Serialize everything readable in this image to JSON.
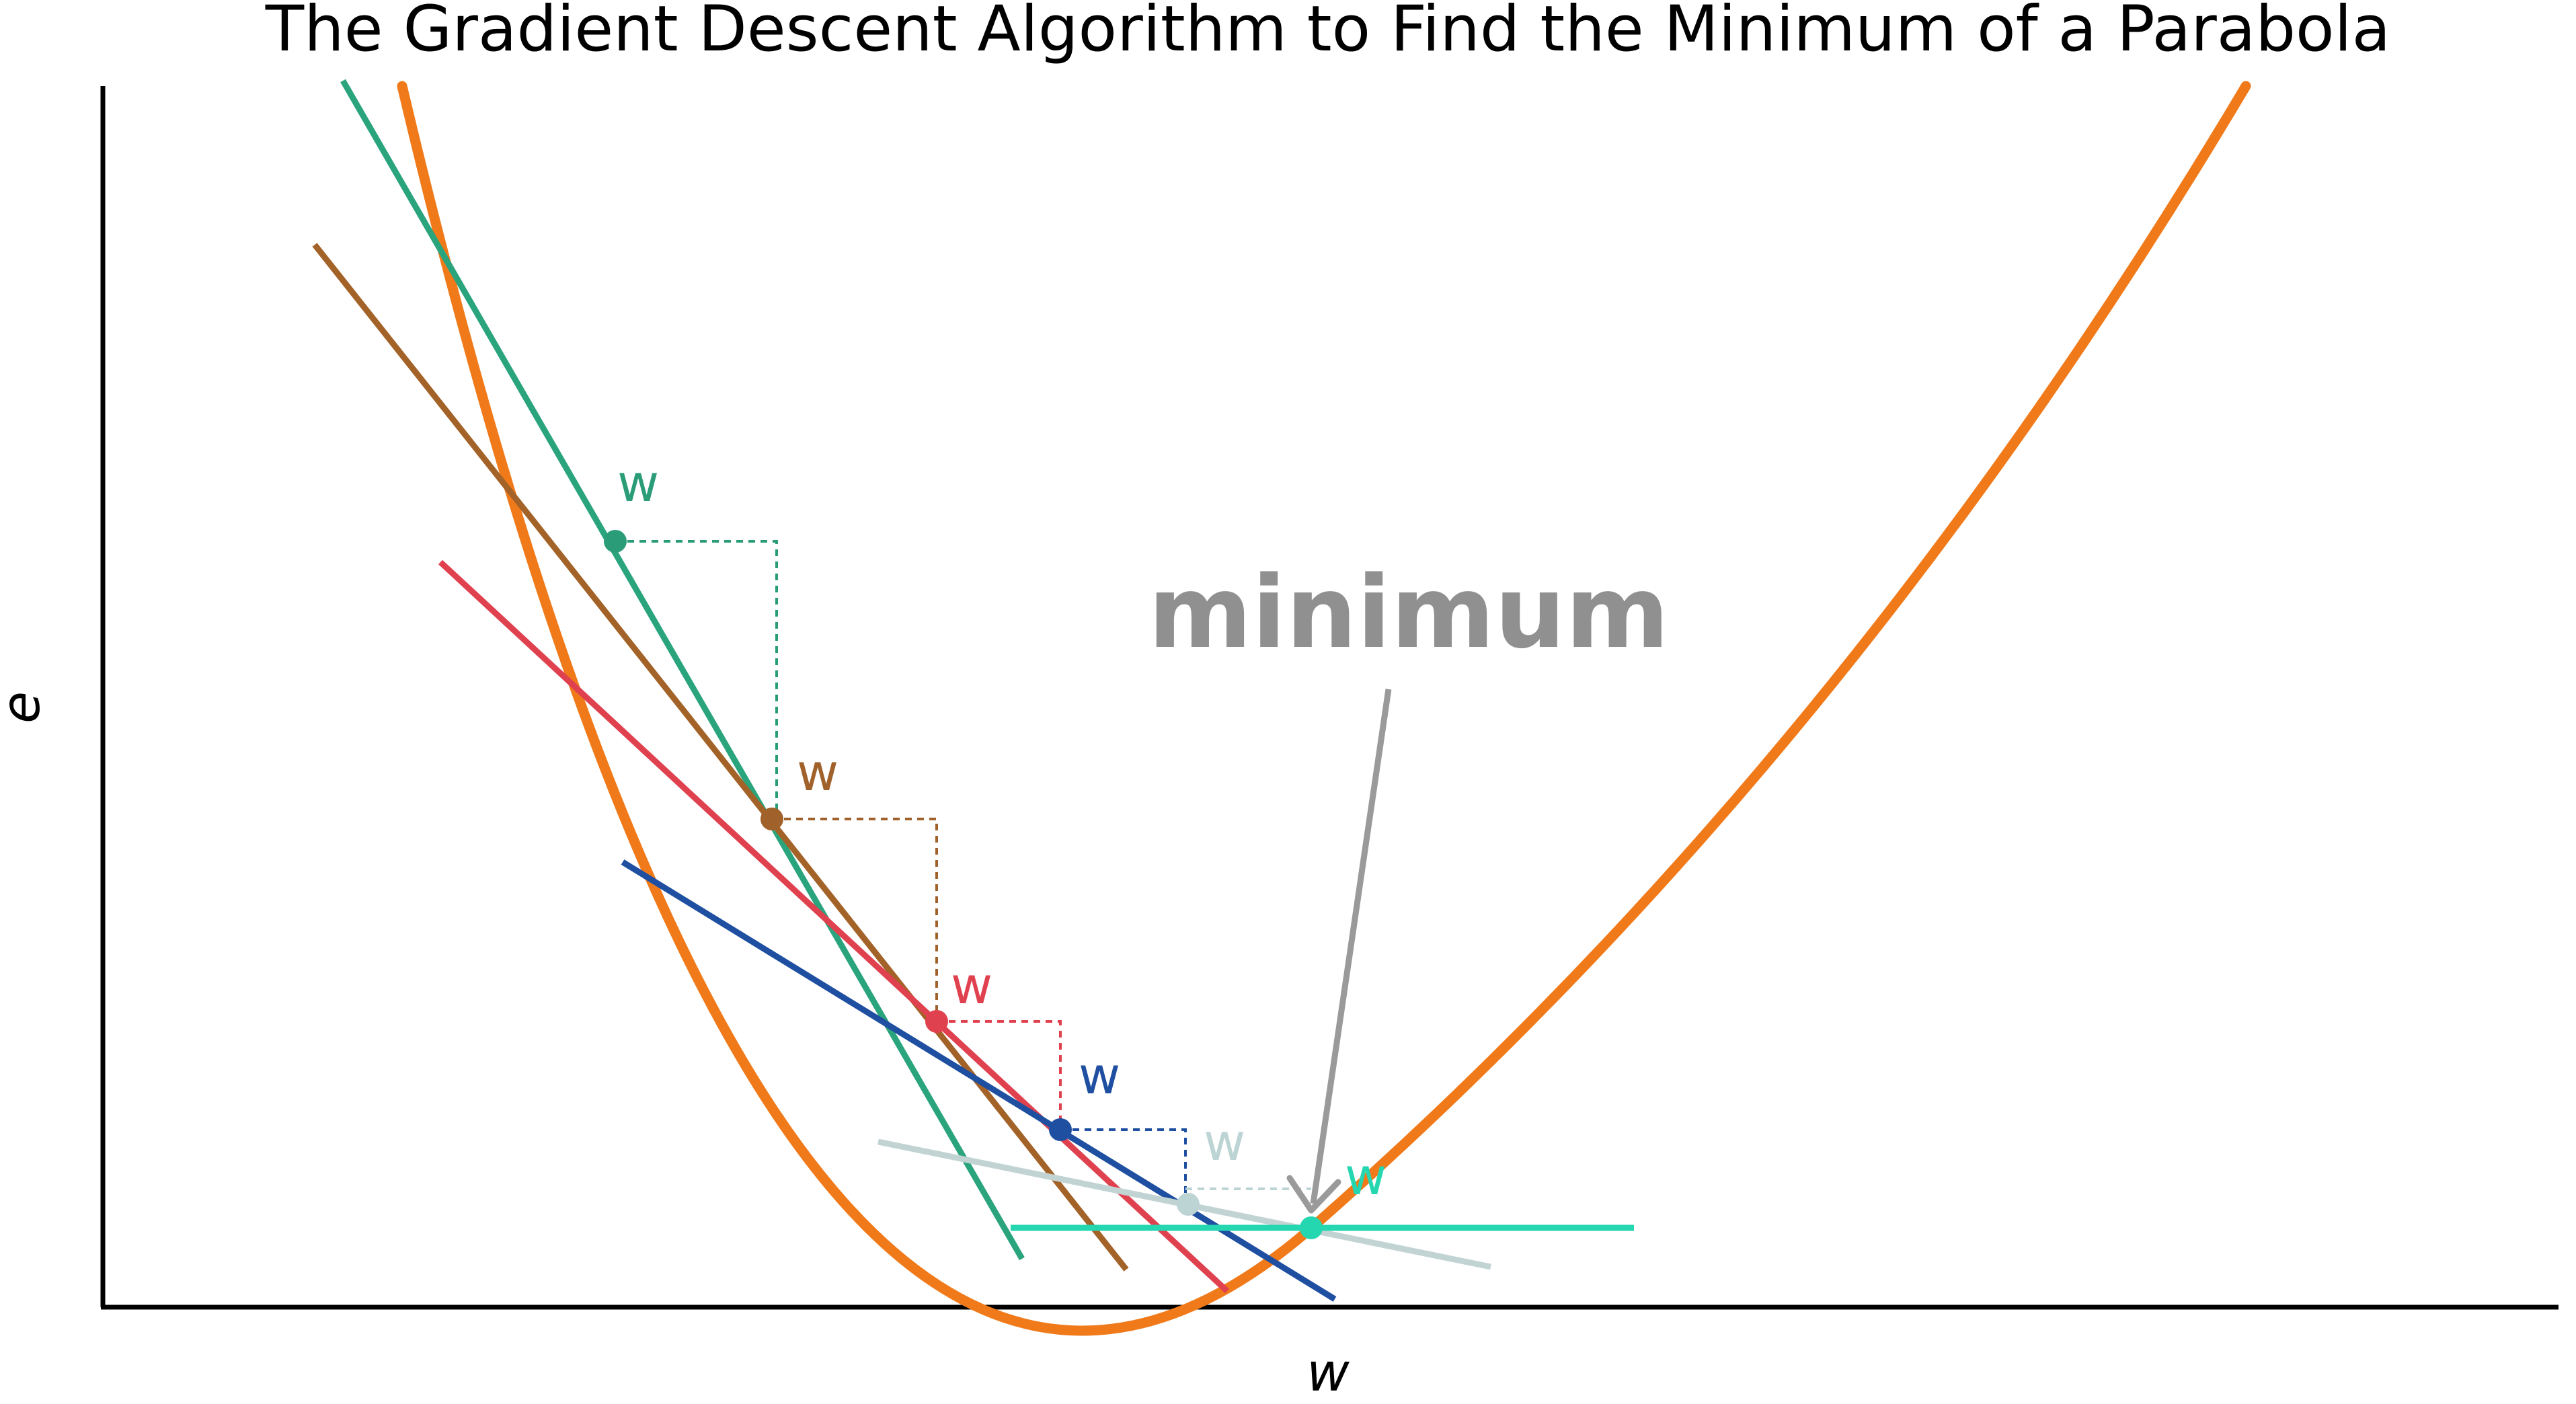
{
  "title": "The Gradient Descent Algorithm to Find the Minimum of a Parabola",
  "axes": {
    "xlabel": "w",
    "ylabel": "e"
  },
  "annotation": {
    "label": "minimum",
    "color": "#9a9a9a"
  },
  "curve": {
    "color": "#f07a1a"
  },
  "steps": [
    {
      "label": "w",
      "color": "#2a9d78",
      "tangent_color": "#2aa47c"
    },
    {
      "label": "w",
      "color": "#a0622a",
      "tangent_color": "#a36227"
    },
    {
      "label": "w",
      "color": "#e0414f",
      "tangent_color": "#e0414f"
    },
    {
      "label": "w",
      "color": "#1f4fa0",
      "tangent_color": "#1f4fa0"
    },
    {
      "label": "w",
      "color": "#bdd4d4",
      "tangent_color": "#c2d3d4"
    },
    {
      "label": "w",
      "color": "#25d7b0",
      "tangent_color": "#25d7b0"
    }
  ]
}
